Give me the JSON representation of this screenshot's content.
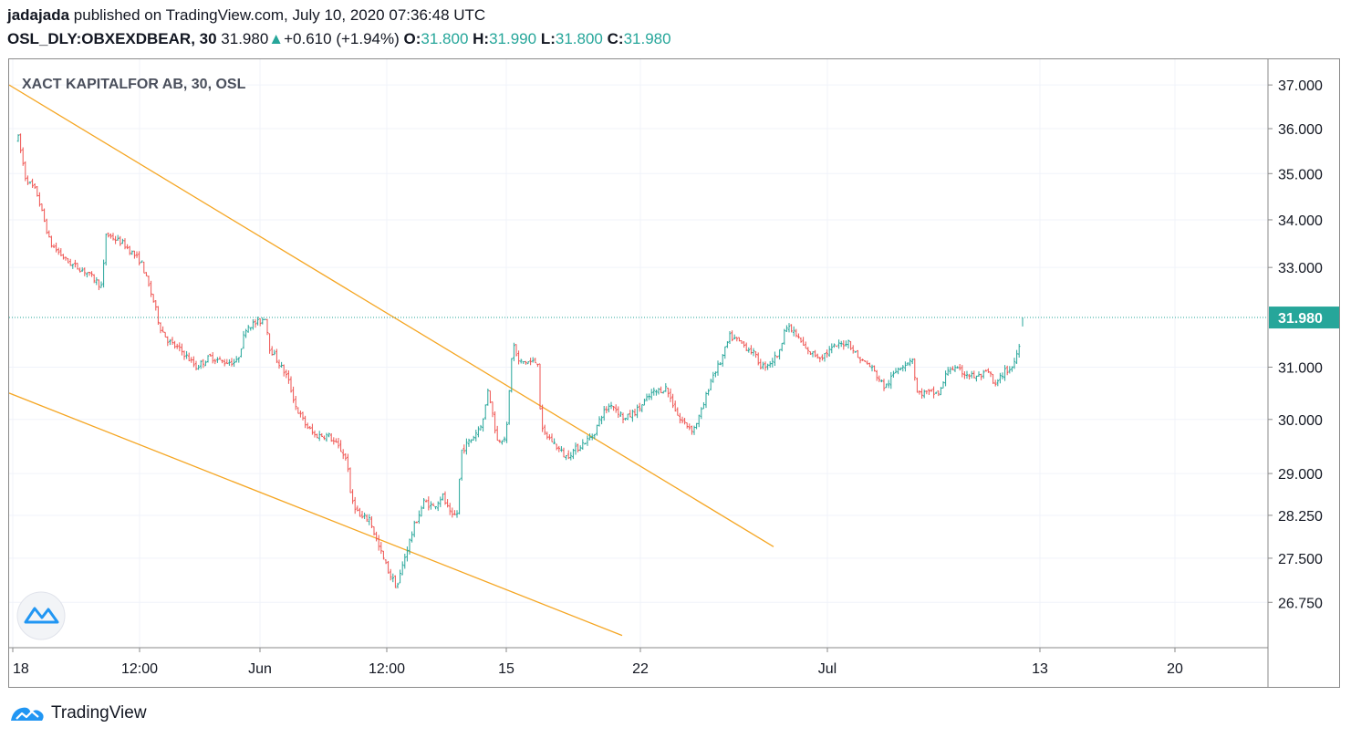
{
  "header": {
    "user": "jadajada",
    "published": "published on TradingView.com, July 10, 2020 07:36:48 UTC",
    "symbol": "OSL_DLY:OBXEXDBEAR, 30",
    "last": "31.980",
    "change": "+0.610 (+1.94%)",
    "o_label": "O:",
    "o_value": "31.800",
    "h_label": "H:",
    "h_value": "31.990",
    "l_label": "L:",
    "l_value": "31.800",
    "c_label": "C:",
    "c_value": "31.980"
  },
  "footer": {
    "brand": "TradingView"
  },
  "chart_data": {
    "type": "candlestick",
    "title": "XACT KAPITALFOR AB, 30, OSL",
    "y_ticks": [
      "37.000",
      "36.000",
      "35.000",
      "34.000",
      "33.000",
      "31.000",
      "30.000",
      "29.000",
      "28.250",
      "27.500",
      "26.750"
    ],
    "y_ticks_values": [
      37,
      36,
      35,
      34,
      33,
      31,
      30,
      29,
      28.25,
      27.5,
      26.75
    ],
    "x_ticks": [
      "18",
      "12:00",
      "Jun",
      "12:00",
      "15",
      "22",
      "Jul",
      "13",
      "20"
    ],
    "last_price_label": "31.980",
    "last_price": 31.98,
    "colors": {
      "up": "#26a69a",
      "down": "#ef5350",
      "trendline": "#f5a623",
      "price_line": "#26a69a"
    },
    "scale": "log",
    "trendlines": [
      {
        "from": [
          "18",
          37.0
        ],
        "to": [
          "22",
          27.7
        ]
      },
      {
        "from": [
          "18",
          30.5
        ],
        "to": [
          "22",
          26.2
        ]
      }
    ],
    "price_path": [
      [
        0,
        35.8
      ],
      [
        8,
        34.9
      ],
      [
        20,
        34.6
      ],
      [
        35,
        33.5
      ],
      [
        55,
        33.1
      ],
      [
        75,
        32.9
      ],
      [
        92,
        32.6
      ],
      [
        96,
        33.7
      ],
      [
        115,
        33.5
      ],
      [
        135,
        33.1
      ],
      [
        150,
        32.2
      ],
      [
        155,
        31.8
      ],
      [
        165,
        31.5
      ],
      [
        180,
        31.3
      ],
      [
        195,
        31.0
      ],
      [
        210,
        31.2
      ],
      [
        225,
        31.1
      ],
      [
        240,
        31.1
      ],
      [
        250,
        31.8
      ],
      [
        265,
        31.9
      ],
      [
        271,
        32.0
      ],
      [
        275,
        31.4
      ],
      [
        285,
        31.1
      ],
      [
        295,
        30.8
      ],
      [
        305,
        30.2
      ],
      [
        315,
        29.9
      ],
      [
        325,
        29.7
      ],
      [
        340,
        29.7
      ],
      [
        355,
        29.4
      ],
      [
        361,
        29.2
      ],
      [
        364,
        28.6
      ],
      [
        375,
        28.2
      ],
      [
        385,
        28.2
      ],
      [
        395,
        27.7
      ],
      [
        405,
        27.3
      ],
      [
        415,
        27.0
      ],
      [
        425,
        27.6
      ],
      [
        435,
        28.1
      ],
      [
        445,
        28.5
      ],
      [
        455,
        28.4
      ],
      [
        465,
        28.6
      ],
      [
        475,
        28.2
      ],
      [
        482,
        28.3
      ],
      [
        485,
        29.4
      ],
      [
        500,
        29.7
      ],
      [
        510,
        30.0
      ],
      [
        515,
        30.6
      ],
      [
        525,
        29.6
      ],
      [
        535,
        29.7
      ],
      [
        542,
        31.5
      ],
      [
        548,
        31.1
      ],
      [
        560,
        31.1
      ],
      [
        570,
        31.1
      ],
      [
        573,
        29.8
      ],
      [
        585,
        29.6
      ],
      [
        600,
        29.3
      ],
      [
        615,
        29.5
      ],
      [
        630,
        29.7
      ],
      [
        640,
        30.1
      ],
      [
        650,
        30.3
      ],
      [
        665,
        30.0
      ],
      [
        680,
        30.2
      ],
      [
        695,
        30.5
      ],
      [
        710,
        30.6
      ],
      [
        725,
        30.0
      ],
      [
        740,
        29.8
      ],
      [
        750,
        30.2
      ],
      [
        760,
        30.8
      ],
      [
        770,
        31.1
      ],
      [
        780,
        31.6
      ],
      [
        790,
        31.5
      ],
      [
        805,
        31.3
      ],
      [
        815,
        31.0
      ],
      [
        825,
        31.1
      ],
      [
        835,
        31.3
      ],
      [
        840,
        31.8
      ],
      [
        850,
        31.7
      ],
      [
        865,
        31.3
      ],
      [
        880,
        31.2
      ],
      [
        895,
        31.4
      ],
      [
        910,
        31.5
      ],
      [
        920,
        31.2
      ],
      [
        935,
        31.0
      ],
      [
        950,
        30.6
      ],
      [
        965,
        31.0
      ],
      [
        975,
        31.1
      ],
      [
        980,
        31.2
      ],
      [
        985,
        30.5
      ],
      [
        1000,
        30.5
      ],
      [
        1010,
        30.5
      ],
      [
        1020,
        31.0
      ],
      [
        1035,
        30.9
      ],
      [
        1050,
        30.8
      ],
      [
        1065,
        30.9
      ],
      [
        1070,
        30.6
      ],
      [
        1080,
        30.9
      ],
      [
        1090,
        31.0
      ],
      [
        1097,
        31.4
      ],
      [
        1099,
        31.98
      ]
    ]
  }
}
